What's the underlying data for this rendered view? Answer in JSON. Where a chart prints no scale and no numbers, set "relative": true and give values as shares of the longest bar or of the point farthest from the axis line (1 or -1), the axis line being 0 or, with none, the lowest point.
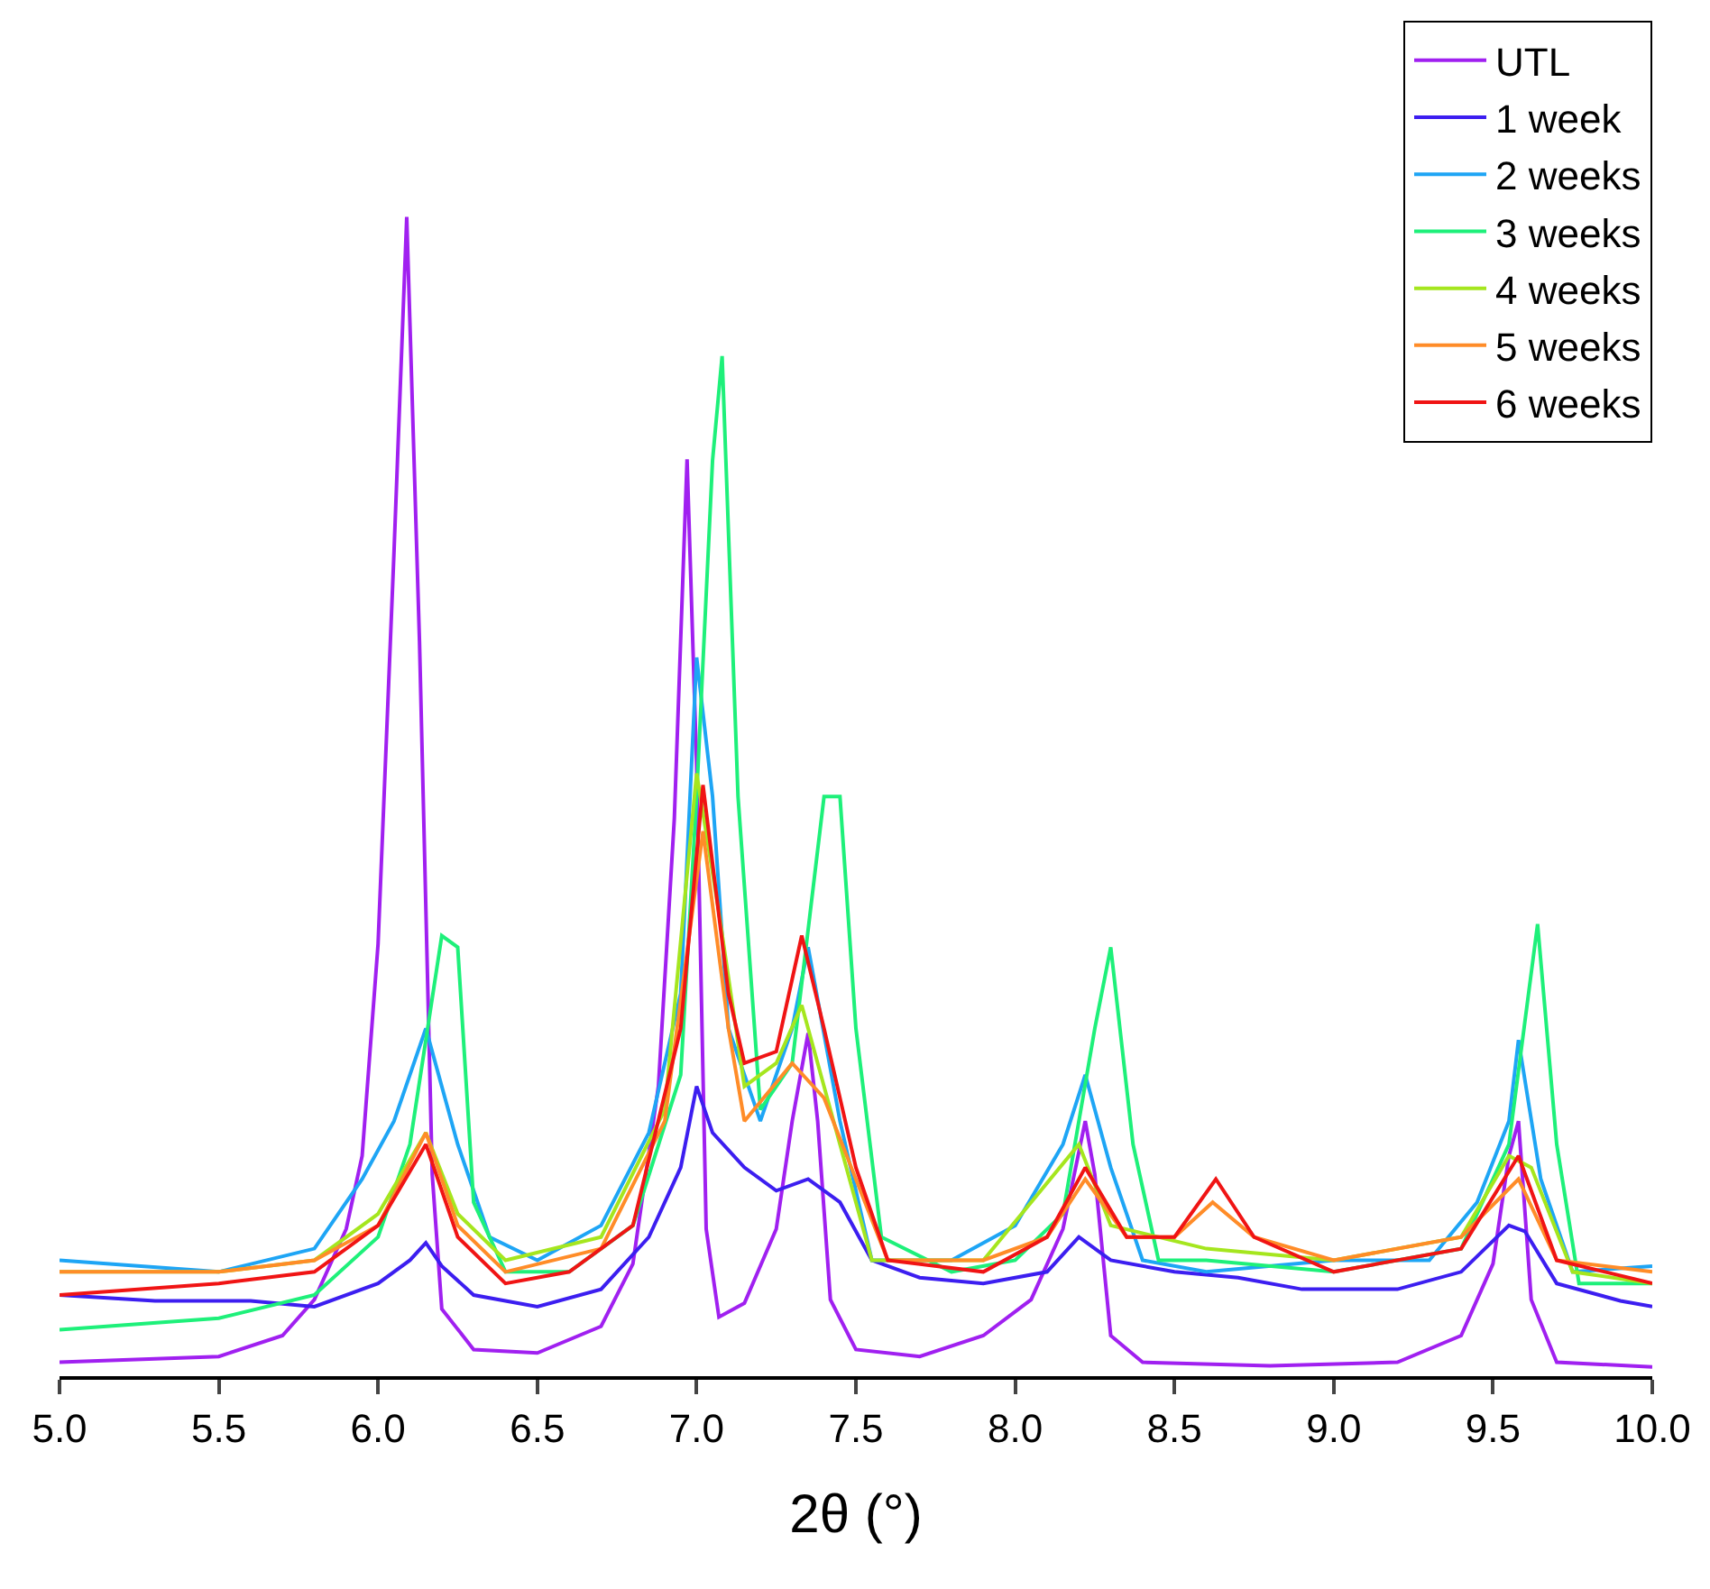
{
  "chart_data": {
    "type": "line",
    "relative": true,
    "xlabel": "2θ (°)",
    "xlim": [
      5.0,
      10.0
    ],
    "xticks": [
      {
        "value": 5,
        "label": "5.0"
      },
      5.5,
      {
        "value": 6,
        "label": "6.0"
      },
      6.5,
      {
        "value": 7,
        "label": "7.0"
      },
      7.5,
      {
        "value": 8,
        "label": "8.0"
      },
      8.5,
      {
        "value": 9,
        "label": "9.0"
      },
      9.5,
      {
        "value": 10,
        "label": "10.0"
      }
    ],
    "tick_labels": "x",
    "legend": "top right",
    "marker": "none",
    "line_style": "solid",
    "series": [
      {
        "name": "UTL",
        "color": "#a020f0",
        "x": [
          5.0,
          5.5,
          5.7,
          5.8,
          5.9,
          5.95,
          6.0,
          6.05,
          6.09,
          6.13,
          6.17,
          6.2,
          6.3,
          6.5,
          6.7,
          6.8,
          6.88,
          6.93,
          6.97,
          7.0,
          7.03,
          7.07,
          7.15,
          7.25,
          7.3,
          7.35,
          7.38,
          7.42,
          7.5,
          7.7,
          7.9,
          8.05,
          8.15,
          8.22,
          8.25,
          8.3,
          8.4,
          8.8,
          9.2,
          9.4,
          9.5,
          9.55,
          9.58,
          9.62,
          9.7,
          10.0
        ],
        "values": [
          0.012,
          0.017,
          0.035,
          0.066,
          0.127,
          0.19,
          0.373,
          0.711,
          1.0,
          0.634,
          0.174,
          0.058,
          0.023,
          0.02,
          0.043,
          0.097,
          0.25,
          0.481,
          0.791,
          0.527,
          0.127,
          0.051,
          0.063,
          0.127,
          0.22,
          0.296,
          0.22,
          0.066,
          0.023,
          0.017,
          0.035,
          0.066,
          0.127,
          0.22,
          0.174,
          0.035,
          0.012,
          0.009,
          0.012,
          0.035,
          0.097,
          0.19,
          0.22,
          0.066,
          0.012,
          0.008
        ]
      },
      {
        "name": "1 week",
        "color": "#3c1ef0",
        "x": [
          5.0,
          5.3,
          5.6,
          5.8,
          6.0,
          6.1,
          6.15,
          6.2,
          6.3,
          6.5,
          6.7,
          6.85,
          6.95,
          7.0,
          7.05,
          7.15,
          7.25,
          7.35,
          7.45,
          7.55,
          7.7,
          7.9,
          8.1,
          8.2,
          8.3,
          8.5,
          8.7,
          8.9,
          9.2,
          9.4,
          9.55,
          9.6,
          9.7,
          9.9,
          10.0
        ],
        "values": [
          0.07,
          0.065,
          0.065,
          0.06,
          0.08,
          0.1,
          0.115,
          0.095,
          0.07,
          0.06,
          0.075,
          0.12,
          0.18,
          0.25,
          0.21,
          0.18,
          0.16,
          0.17,
          0.15,
          0.1,
          0.085,
          0.08,
          0.09,
          0.12,
          0.1,
          0.09,
          0.085,
          0.075,
          0.075,
          0.09,
          0.13,
          0.125,
          0.08,
          0.065,
          0.06
        ]
      },
      {
        "name": "2 weeks",
        "color": "#1ea5f5",
        "x": [
          5.0,
          5.5,
          5.8,
          5.95,
          6.05,
          6.15,
          6.25,
          6.35,
          6.5,
          6.7,
          6.85,
          6.95,
          7.0,
          7.05,
          7.1,
          7.2,
          7.3,
          7.35,
          7.45,
          7.55,
          7.8,
          8.0,
          8.15,
          8.22,
          8.3,
          8.4,
          8.6,
          9.0,
          9.3,
          9.45,
          9.55,
          9.58,
          9.65,
          9.75,
          10.0
        ],
        "values": [
          0.1,
          0.09,
          0.11,
          0.17,
          0.22,
          0.3,
          0.2,
          0.12,
          0.1,
          0.13,
          0.21,
          0.33,
          0.62,
          0.5,
          0.3,
          0.22,
          0.3,
          0.37,
          0.22,
          0.1,
          0.1,
          0.13,
          0.2,
          0.26,
          0.18,
          0.1,
          0.09,
          0.1,
          0.1,
          0.15,
          0.22,
          0.29,
          0.17,
          0.09,
          0.095
        ]
      },
      {
        "name": "3 weeks",
        "color": "#1ef07a",
        "x": [
          5.0,
          5.5,
          5.8,
          6.0,
          6.1,
          6.2,
          6.25,
          6.3,
          6.4,
          6.6,
          6.8,
          6.95,
          7.0,
          7.05,
          7.08,
          7.13,
          7.2,
          7.3,
          7.4,
          7.45,
          7.5,
          7.58,
          7.8,
          8.0,
          8.15,
          8.25,
          8.3,
          8.37,
          8.45,
          8.6,
          9.0,
          9.4,
          9.55,
          9.64,
          9.7,
          9.77,
          10.0
        ],
        "values": [
          0.04,
          0.05,
          0.07,
          0.12,
          0.2,
          0.38,
          0.37,
          0.15,
          0.09,
          0.09,
          0.13,
          0.26,
          0.5,
          0.79,
          0.88,
          0.5,
          0.23,
          0.27,
          0.5,
          0.5,
          0.3,
          0.12,
          0.09,
          0.1,
          0.14,
          0.3,
          0.37,
          0.2,
          0.1,
          0.1,
          0.09,
          0.11,
          0.2,
          0.39,
          0.2,
          0.08,
          0.08
        ]
      },
      {
        "name": "4 weeks",
        "color": "#a5e61e",
        "x": [
          5.0,
          5.5,
          5.8,
          6.0,
          6.15,
          6.25,
          6.4,
          6.7,
          6.9,
          7.0,
          7.07,
          7.15,
          7.25,
          7.33,
          7.45,
          7.55,
          7.9,
          8.2,
          8.3,
          8.6,
          9.0,
          9.4,
          9.55,
          9.62,
          9.75,
          10.0
        ],
        "values": [
          0.09,
          0.09,
          0.1,
          0.14,
          0.21,
          0.14,
          0.1,
          0.12,
          0.23,
          0.52,
          0.4,
          0.25,
          0.27,
          0.32,
          0.2,
          0.1,
          0.1,
          0.2,
          0.13,
          0.11,
          0.1,
          0.12,
          0.19,
          0.18,
          0.09,
          0.08
        ]
      },
      {
        "name": "5 weeks",
        "color": "#ff8c28",
        "x": [
          5.0,
          5.5,
          5.8,
          6.0,
          6.15,
          6.25,
          6.4,
          6.7,
          6.9,
          7.02,
          7.1,
          7.15,
          7.3,
          7.4,
          7.5,
          7.6,
          7.9,
          8.1,
          8.22,
          8.35,
          8.5,
          8.62,
          8.75,
          9.0,
          9.4,
          9.58,
          9.7,
          10.0
        ],
        "values": [
          0.09,
          0.09,
          0.1,
          0.13,
          0.21,
          0.13,
          0.09,
          0.11,
          0.22,
          0.47,
          0.3,
          0.22,
          0.27,
          0.24,
          0.17,
          0.1,
          0.1,
          0.12,
          0.17,
          0.12,
          0.12,
          0.15,
          0.12,
          0.1,
          0.12,
          0.17,
          0.1,
          0.09
        ]
      },
      {
        "name": "6 weeks",
        "color": "#f01414",
        "x": [
          5.0,
          5.5,
          5.8,
          6.0,
          6.15,
          6.25,
          6.4,
          6.6,
          6.8,
          6.95,
          7.02,
          7.1,
          7.15,
          7.25,
          7.33,
          7.4,
          7.5,
          7.6,
          7.9,
          8.1,
          8.22,
          8.35,
          8.5,
          8.63,
          8.75,
          9.0,
          9.4,
          9.58,
          9.7,
          10.0
        ],
        "values": [
          0.07,
          0.08,
          0.09,
          0.13,
          0.2,
          0.12,
          0.08,
          0.09,
          0.13,
          0.3,
          0.51,
          0.33,
          0.27,
          0.28,
          0.38,
          0.3,
          0.18,
          0.1,
          0.09,
          0.12,
          0.18,
          0.12,
          0.12,
          0.17,
          0.12,
          0.09,
          0.11,
          0.19,
          0.1,
          0.08
        ]
      }
    ]
  }
}
